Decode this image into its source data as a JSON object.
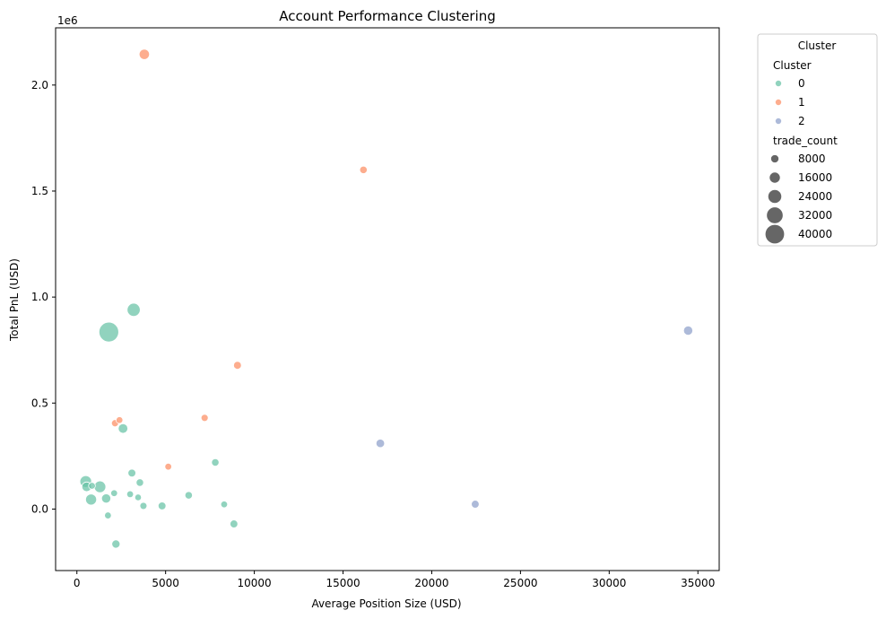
{
  "chart_data": {
    "type": "scatter",
    "title": "Account Performance Clustering",
    "xlabel": "Average Position Size (USD)",
    "ylabel": "Total PnL (USD)",
    "y_offset_label": "1e6",
    "xlim": [
      -1200,
      36200
    ],
    "ylim": [
      -290000,
      2270000
    ],
    "x_ticks": [
      0,
      5000,
      10000,
      15000,
      20000,
      25000,
      30000,
      35000
    ],
    "x_tick_labels": [
      "0",
      "5000",
      "10000",
      "15000",
      "20000",
      "25000",
      "30000",
      "35000"
    ],
    "y_ticks": [
      0,
      500000,
      1000000,
      1500000,
      2000000
    ],
    "y_tick_labels": [
      "0.0",
      "0.5",
      "1.0",
      "1.5",
      "2.0"
    ],
    "grid": false,
    "legend": {
      "title": "Cluster",
      "placement": "outside-right",
      "hue_title": "Cluster",
      "hue_entries": [
        {
          "label": "0",
          "color": "#66c2a5"
        },
        {
          "label": "1",
          "color": "#fc8d62"
        },
        {
          "label": "2",
          "color": "#8da0cb"
        }
      ],
      "size_title": "trade_count",
      "size_entries": [
        {
          "label": "8000",
          "value": 8000
        },
        {
          "label": "16000",
          "value": 16000
        },
        {
          "label": "24000",
          "value": 24000
        },
        {
          "label": "32000",
          "value": 32000
        },
        {
          "label": "40000",
          "value": 40000
        }
      ],
      "size_marker_color": "#555555"
    },
    "size_range": [
      1000,
      41000
    ],
    "series": [
      {
        "name": "0",
        "color": "#66c2a5",
        "points": [
          {
            "x": 1800,
            "y": 835000,
            "trade_count": 41000
          },
          {
            "x": 3200,
            "y": 940000,
            "trade_count": 22000
          },
          {
            "x": 2600,
            "y": 380000,
            "trade_count": 12000
          },
          {
            "x": 500,
            "y": 130000,
            "trade_count": 18000
          },
          {
            "x": 550,
            "y": 105000,
            "trade_count": 12000
          },
          {
            "x": 800,
            "y": 45000,
            "trade_count": 16000
          },
          {
            "x": 1300,
            "y": 105000,
            "trade_count": 18000
          },
          {
            "x": 1650,
            "y": 50000,
            "trade_count": 11000
          },
          {
            "x": 850,
            "y": 110000,
            "trade_count": 4000
          },
          {
            "x": 2100,
            "y": 75000,
            "trade_count": 4000
          },
          {
            "x": 3000,
            "y": 70000,
            "trade_count": 4000
          },
          {
            "x": 3100,
            "y": 170000,
            "trade_count": 7000
          },
          {
            "x": 3550,
            "y": 125000,
            "trade_count": 6000
          },
          {
            "x": 3450,
            "y": 55000,
            "trade_count": 3500
          },
          {
            "x": 3750,
            "y": 15000,
            "trade_count": 5000
          },
          {
            "x": 4800,
            "y": 15000,
            "trade_count": 7000
          },
          {
            "x": 6300,
            "y": 65000,
            "trade_count": 6000
          },
          {
            "x": 7800,
            "y": 220000,
            "trade_count": 6000
          },
          {
            "x": 8300,
            "y": 22000,
            "trade_count": 4000
          },
          {
            "x": 8850,
            "y": -70000,
            "trade_count": 7000
          },
          {
            "x": 1750,
            "y": -30000,
            "trade_count": 4000
          },
          {
            "x": 2200,
            "y": -165000,
            "trade_count": 8000
          }
        ]
      },
      {
        "name": "1",
        "color": "#fc8d62",
        "points": [
          {
            "x": 3800,
            "y": 2145000,
            "trade_count": 14000
          },
          {
            "x": 16150,
            "y": 1600000,
            "trade_count": 6000
          },
          {
            "x": 9050,
            "y": 678000,
            "trade_count": 7000
          },
          {
            "x": 7200,
            "y": 430000,
            "trade_count": 5000
          },
          {
            "x": 2150,
            "y": 405000,
            "trade_count": 5000
          },
          {
            "x": 2400,
            "y": 420000,
            "trade_count": 4000
          },
          {
            "x": 5150,
            "y": 200000,
            "trade_count": 4000
          }
        ]
      },
      {
        "name": "2",
        "color": "#8da0cb",
        "points": [
          {
            "x": 34450,
            "y": 842000,
            "trade_count": 11000
          },
          {
            "x": 17100,
            "y": 310000,
            "trade_count": 9000
          },
          {
            "x": 22450,
            "y": 23000,
            "trade_count": 7000
          }
        ]
      }
    ]
  }
}
